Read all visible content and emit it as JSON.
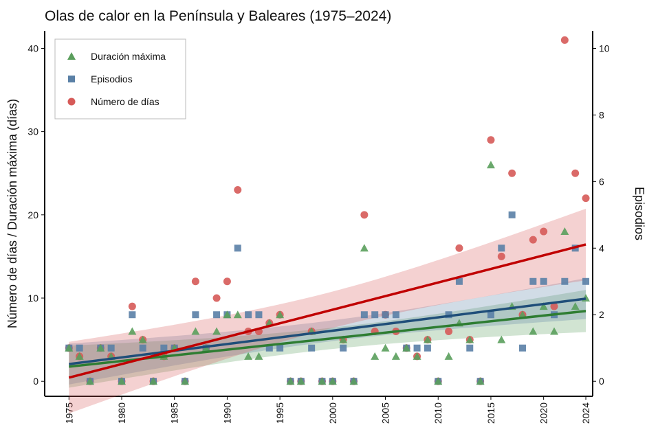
{
  "chart_data": {
    "type": "scatter",
    "title": "Olas de calor en la Península y Baleares (1975–2024)",
    "y_label": "Número de días / Duración máxima (días)",
    "y2_label": "Episodios",
    "x": [
      1975,
      1976,
      1977,
      1978,
      1979,
      1980,
      1981,
      1982,
      1983,
      1984,
      1985,
      1986,
      1987,
      1988,
      1989,
      1990,
      1991,
      1992,
      1993,
      1994,
      1995,
      1996,
      1997,
      1998,
      1999,
      2000,
      2001,
      2002,
      2003,
      2004,
      2005,
      2006,
      2007,
      2008,
      2009,
      2010,
      2011,
      2012,
      2013,
      2014,
      2015,
      2016,
      2017,
      2018,
      2019,
      2020,
      2021,
      2022,
      2023,
      2024
    ],
    "series": [
      {
        "name": "Duración máxima",
        "color": "#5a9e5c",
        "marker": "triangle",
        "trend_color": "#2e7d32",
        "values": [
          4,
          3,
          0,
          4,
          3,
          0,
          6,
          5,
          0,
          3,
          4,
          0,
          6,
          4,
          6,
          8,
          8,
          3,
          3,
          7,
          8,
          0,
          0,
          6,
          0,
          0,
          5,
          0,
          16,
          3,
          4,
          3,
          4,
          3,
          5,
          0,
          3,
          7,
          5,
          0,
          26,
          5,
          9,
          8,
          6,
          9,
          6,
          18,
          9,
          10
        ]
      },
      {
        "name": "Episodios",
        "color": "#5a80a6",
        "marker": "square",
        "trend_color": "#1f4e79",
        "axis": "y2",
        "values": [
          1,
          1,
          0,
          1,
          1,
          0,
          2,
          1,
          0,
          1,
          1,
          0,
          2,
          1,
          2,
          2,
          4,
          2,
          2,
          1,
          1,
          0,
          0,
          1,
          0,
          0,
          1,
          0,
          2,
          2,
          2,
          2,
          1,
          1,
          1,
          0,
          2,
          3,
          1,
          0,
          2,
          4,
          5,
          1,
          3,
          3,
          2,
          3,
          4,
          3
        ]
      },
      {
        "name": "Número de días",
        "color": "#d65a58",
        "marker": "circle",
        "trend_color": "#c00000",
        "values": [
          4,
          3,
          0,
          4,
          3,
          0,
          9,
          5,
          0,
          3,
          4,
          0,
          12,
          4,
          10,
          12,
          23,
          6,
          6,
          7,
          8,
          0,
          0,
          6,
          0,
          0,
          5,
          0,
          20,
          6,
          8,
          6,
          4,
          3,
          5,
          0,
          6,
          16,
          5,
          0,
          29,
          15,
          25,
          8,
          17,
          18,
          9,
          41,
          25,
          22
        ]
      }
    ],
    "xlim": [
      1972.7,
      2024.65
    ],
    "xticks": [
      1975,
      1980,
      1985,
      1990,
      1995,
      2000,
      2005,
      2010,
      2015,
      2020,
      2024
    ],
    "ylim": [
      -1.8,
      42.1
    ],
    "yticks": [
      0,
      10,
      20,
      30,
      40
    ],
    "y2lim": [
      -0.45,
      10.525
    ],
    "y2ticks": [
      0,
      2,
      4,
      6,
      8,
      10
    ],
    "legend": "upper left",
    "trend": true
  }
}
